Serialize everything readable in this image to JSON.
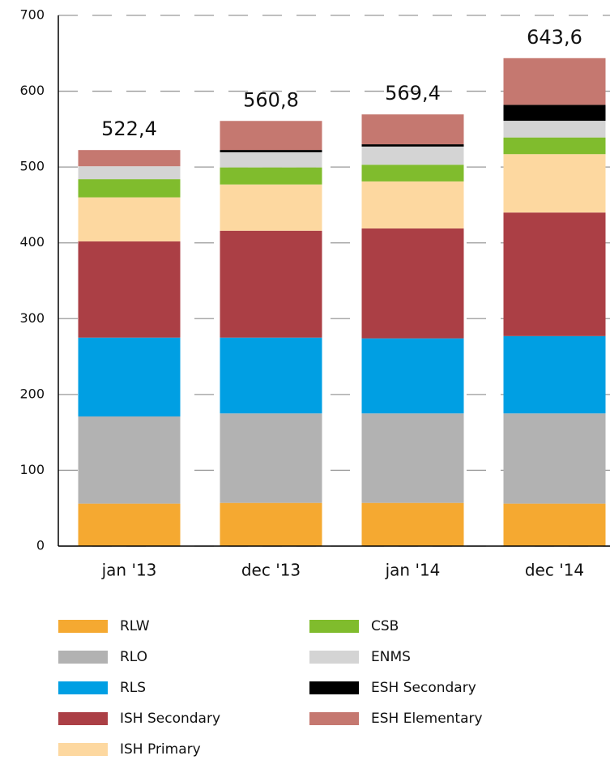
{
  "chart_data": {
    "type": "stacked_bar",
    "categories": [
      "jan '13",
      "dec '13",
      "jan '14",
      "dec '14"
    ],
    "series": [
      {
        "name": "RLW",
        "color": "#f5a931",
        "values": [
          56,
          57,
          57,
          56
        ]
      },
      {
        "name": "RLO",
        "color": "#b2b2b2",
        "values": [
          115,
          118,
          118,
          119
        ]
      },
      {
        "name": "RLS",
        "color": "#009fe3",
        "values": [
          104,
          100,
          99,
          102
        ]
      },
      {
        "name": "ISH Secondary",
        "color": "#ab3f45",
        "values": [
          127,
          141,
          145,
          163
        ]
      },
      {
        "name": "ISH Primary",
        "color": "#fdd8a0",
        "values": [
          58,
          61,
          62,
          77
        ]
      },
      {
        "name": "CSB",
        "color": "#80bc2d",
        "values": [
          24,
          22.5,
          22,
          22
        ]
      },
      {
        "name": "ENMS",
        "color": "#d4d4d4",
        "values": [
          17,
          20,
          24,
          22
        ]
      },
      {
        "name": "ESH Secondary",
        "color": "#000000",
        "values": [
          0,
          3,
          3,
          21
        ]
      },
      {
        "name": "ESH Elementary",
        "color": "#c57870",
        "values": [
          21.4,
          38.3,
          39.4,
          61.6
        ]
      }
    ],
    "totals": {
      "values": [
        522.4,
        560.8,
        569.4,
        643.6
      ],
      "value_labels": [
        "522,4",
        "560,8",
        "569,4",
        "643,6"
      ]
    },
    "ylim": [
      0,
      700
    ],
    "yticks": [
      0,
      100,
      200,
      300,
      400,
      500,
      600,
      700
    ],
    "grid": true
  }
}
